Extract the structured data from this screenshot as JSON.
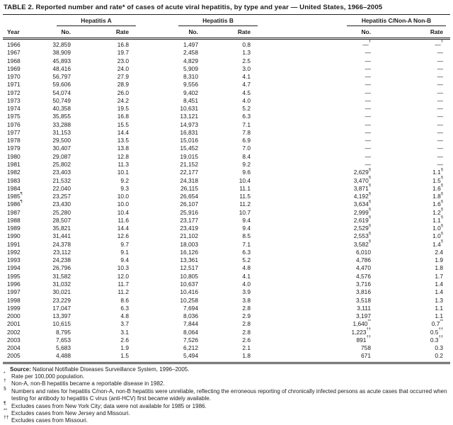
{
  "title": "TABLE 2. Reported number and rate* of cases of acute viral hepatitis, by type and year — United States, 1966–2005",
  "table": {
    "groups": [
      {
        "label": "Hepatitis A"
      },
      {
        "label": "Hepatitis B"
      },
      {
        "label": "Hepatitis C/Non-A Non-B"
      }
    ],
    "columns": [
      "Year",
      "No.",
      "Rate",
      "No.",
      "Rate",
      "No.",
      "Rate"
    ],
    "rows": [
      [
        "1966",
        "32,859",
        "16.8",
        "1,497",
        "0.8",
        "—†",
        "—†"
      ],
      [
        "1967",
        "38,909",
        "19.7",
        "2,458",
        "1.3",
        "—",
        "—"
      ],
      [
        "1968",
        "45,893",
        "23.0",
        "4,829",
        "2.5",
        "—",
        "—"
      ],
      [
        "1969",
        "48,416",
        "24.0",
        "5,909",
        "3.0",
        "—",
        "—"
      ],
      [
        "1970",
        "56,797",
        "27.9",
        "8,310",
        "4.1",
        "—",
        "—"
      ],
      [
        "1971",
        "59,606",
        "28.9",
        "9,556",
        "4.7",
        "—",
        "—"
      ],
      [
        "1972",
        "54,074",
        "26.0",
        "9,402",
        "4.5",
        "—",
        "—"
      ],
      [
        "1973",
        "50,749",
        "24.2",
        "8,451",
        "4.0",
        "—",
        "—"
      ],
      [
        "1974",
        "40,358",
        "19.5",
        "10,631",
        "5.2",
        "—",
        "—"
      ],
      [
        "1975",
        "35,855",
        "16.8",
        "13,121",
        "6.3",
        "—",
        "—"
      ],
      [
        "1976",
        "33,288",
        "15.5",
        "14,973",
        "7.1",
        "—",
        "—"
      ],
      [
        "1977",
        "31,153",
        "14.4",
        "16,831",
        "7.8",
        "—",
        "—"
      ],
      [
        "1978",
        "29,500",
        "13.5",
        "15,016",
        "6.9",
        "—",
        "—"
      ],
      [
        "1979",
        "30,407",
        "13.8",
        "15,452",
        "7.0",
        "—",
        "—"
      ],
      [
        "1980",
        "29,087",
        "12.8",
        "19,015",
        "8.4",
        "—",
        "—"
      ],
      [
        "1981",
        "25,802",
        "11.3",
        "21,152",
        "9.2",
        "—",
        "—"
      ],
      [
        "1982",
        "23,403",
        "10.1",
        "22,177",
        "9.6",
        "2,629§",
        "1.1§"
      ],
      [
        "1983",
        "21,532",
        "9.2",
        "24,318",
        "10.4",
        "3,470§",
        "1.5§"
      ],
      [
        "1984",
        "22,040",
        "9.3",
        "26,115",
        "11.1",
        "3,871§",
        "1.6§"
      ],
      [
        "1985¶",
        "23,257",
        "10.0",
        "26,654",
        "11.5",
        "4,192§",
        "1.8§"
      ],
      [
        "1986¶",
        "23,430",
        "10.0",
        "26,107",
        "11.2",
        "3,634§",
        "1.6§"
      ],
      [
        "1987",
        "25,280",
        "10.4",
        "25,916",
        "10.7",
        "2,999§",
        "1.2§"
      ],
      [
        "1988",
        "28,507",
        "11.6",
        "23,177",
        "9.4",
        "2,619§",
        "1.1§"
      ],
      [
        "1989",
        "35,821",
        "14.4",
        "23,419",
        "9.4",
        "2,529§",
        "1.0§"
      ],
      [
        "1990",
        "31,441",
        "12.6",
        "21,102",
        "8.5",
        "2,553§",
        "1.0§"
      ],
      [
        "1991",
        "24,378",
        "9.7",
        "18,003",
        "7.1",
        "3,582§",
        "1.4§"
      ],
      [
        "1992",
        "23,112",
        "9.1",
        "16,126",
        "6.3",
        "6,010",
        "2.4"
      ],
      [
        "1993",
        "24,238",
        "9.4",
        "13,361",
        "5.2",
        "4,786",
        "1.9"
      ],
      [
        "1994",
        "26,796",
        "10.3",
        "12,517",
        "4.8",
        "4,470",
        "1.8"
      ],
      [
        "1995",
        "31,582",
        "12.0",
        "10,805",
        "4.1",
        "4,576",
        "1.7"
      ],
      [
        "1996",
        "31,032",
        "11.7",
        "10,637",
        "4.0",
        "3,716",
        "1.4"
      ],
      [
        "1997",
        "30,021",
        "11.2",
        "10,416",
        "3.9",
        "3,816",
        "1.4"
      ],
      [
        "1998",
        "23,229",
        "8.6",
        "10,258",
        "3.8",
        "3,518",
        "1.3"
      ],
      [
        "1999",
        "17,047",
        "6.3",
        "7,694",
        "2.8",
        "3,111",
        "1.1"
      ],
      [
        "2000",
        "13,397",
        "4.8",
        "8,036",
        "2.9",
        "3,197",
        "1.1"
      ],
      [
        "2001",
        "10,615",
        "3.7",
        "7,844",
        "2.8",
        "1,640**",
        "0.7**"
      ],
      [
        "2002",
        "8,795",
        "3.1",
        "8,064",
        "2.8",
        "1,223††",
        "0.5††"
      ],
      [
        "2003",
        "7,653",
        "2.6",
        "7,526",
        "2.6",
        "891††",
        "0.3††"
      ],
      [
        "2004",
        "5,683",
        "1.9",
        "6,212",
        "2.1",
        "758",
        "0.3"
      ],
      [
        "2005",
        "4,488",
        "1.5",
        "5,494",
        "1.8",
        "671",
        "0.2"
      ]
    ]
  },
  "footnotes": [
    {
      "marker": "",
      "bold_prefix": "Source:",
      "text": "National Notifiable Diseases Surveillance System, 1996–2005."
    },
    {
      "marker": "*",
      "text": "Rate per 100,000 population."
    },
    {
      "marker": "†",
      "text": "Non-A, non-B hepatitis became a reportable disease in 1982."
    },
    {
      "marker": "§",
      "text": "Numbers and rates for hepatitis C/non-A, non-B hepatitis were unreliable, reflecting the erroneous reporting of chronically infected persons as acute cases that occurred when testing for antibody to hepatitis C virus (anti-HCV) first became widely available."
    },
    {
      "marker": "¶",
      "text": "Excludes cases from New York City; data were not available for 1985 or 1986."
    },
    {
      "marker": "**",
      "text": "Excludes cases from New Jersey and Missouri."
    },
    {
      "marker": "††",
      "text": "Excludes cases from Missouri."
    }
  ]
}
